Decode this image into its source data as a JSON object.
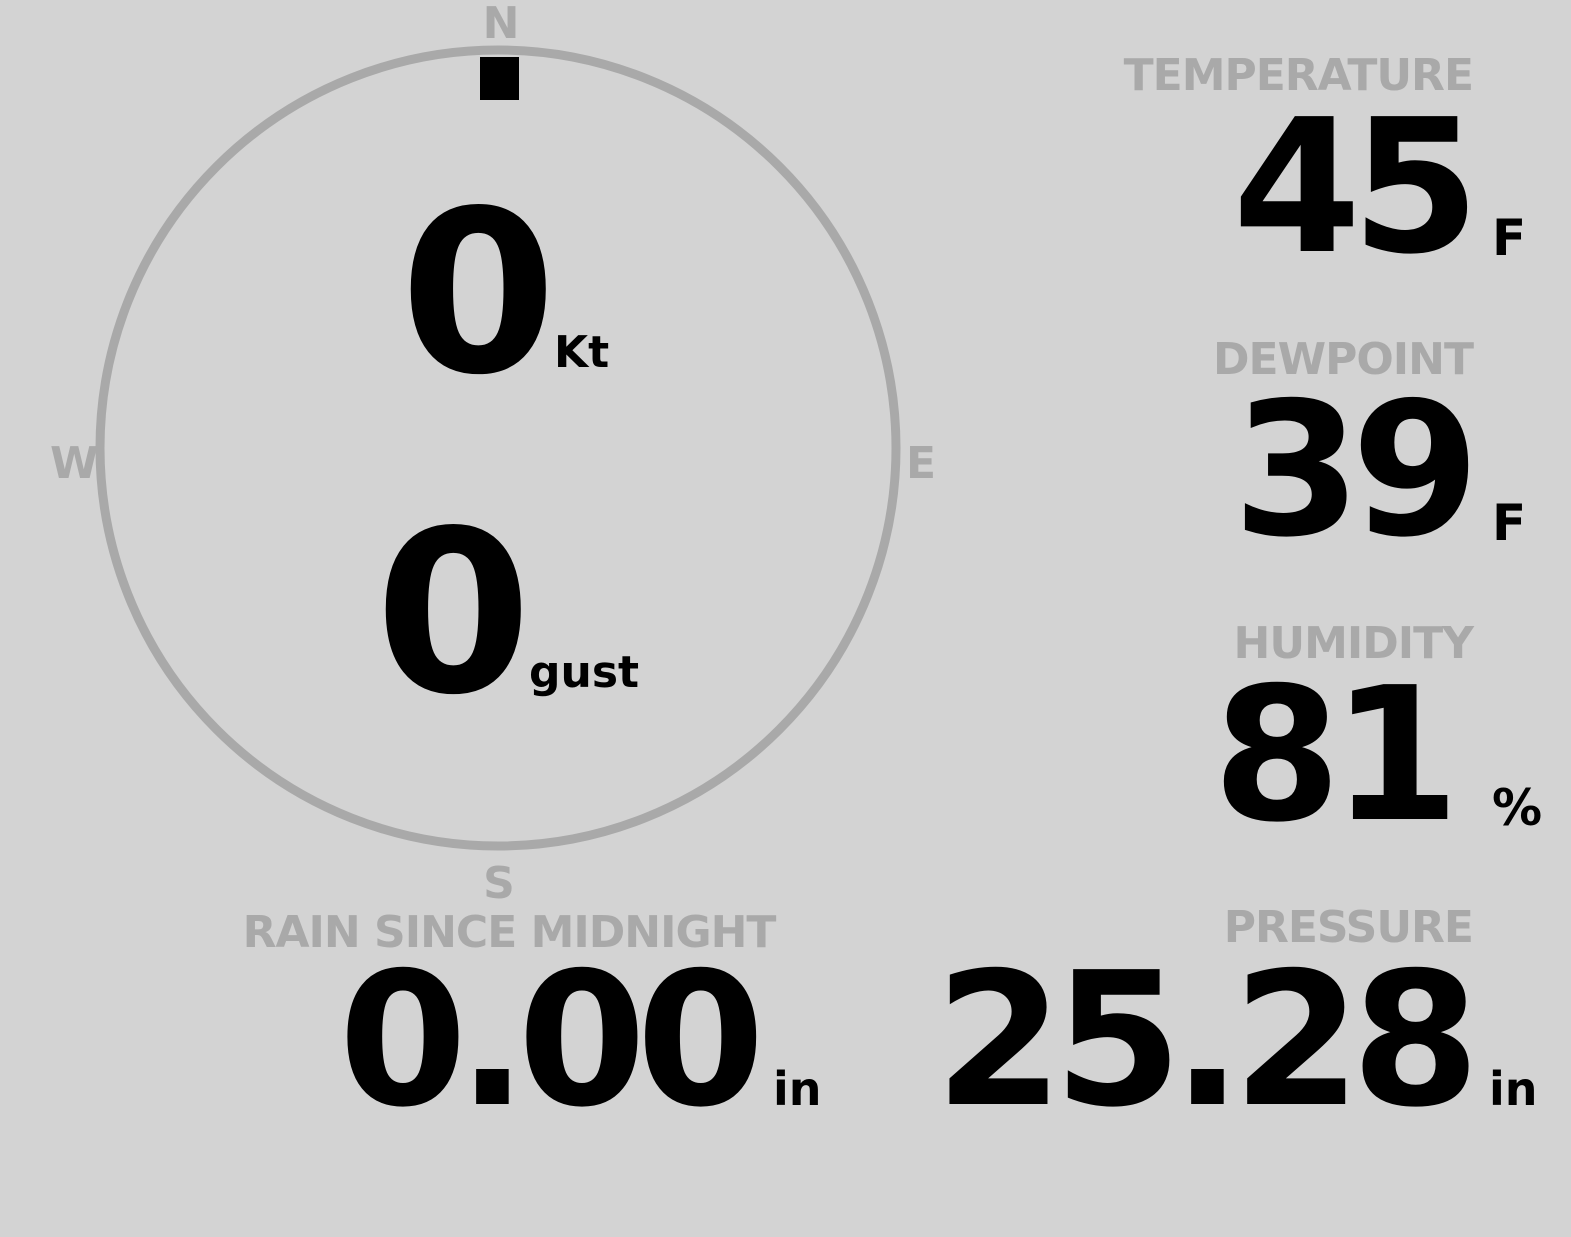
{
  "compass": {
    "north": "N",
    "east": "E",
    "south": "S",
    "west": "W",
    "wind_direction_deg": 0,
    "ring_color": "#a9a9a9",
    "marker_color": "#000000"
  },
  "wind": {
    "speed": "0",
    "speed_unit": "Kt",
    "gust": "0",
    "gust_unit": "gust"
  },
  "temperature": {
    "label": "TEMPERATURE",
    "value": "45",
    "unit": "F"
  },
  "dewpoint": {
    "label": "DEWPOINT",
    "value": "39",
    "unit": "F"
  },
  "humidity": {
    "label": "HUMIDITY",
    "value": "81",
    "unit": "%"
  },
  "rain": {
    "label": "RAIN SINCE MIDNIGHT",
    "value": "0.00",
    "unit": "in"
  },
  "pressure": {
    "label": "PRESSURE",
    "value": "25.28",
    "unit": "in"
  },
  "colors": {
    "background": "#d3d3d3",
    "label": "#a9a9a9",
    "value": "#000000"
  }
}
